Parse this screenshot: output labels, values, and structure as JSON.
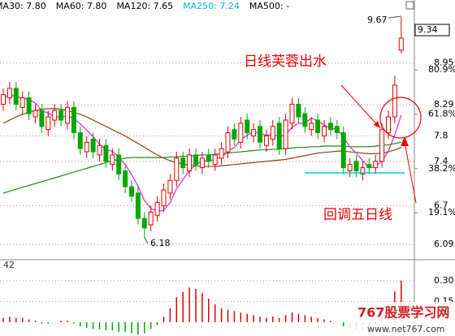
{
  "chart_data": [
    {
      "type": "candlestick",
      "header": [
        {
          "label": "MA30: 7.80",
          "color": "#000000"
        },
        {
          "label": "MA60: 7.80",
          "color": "#000000"
        },
        {
          "label": "MA120: 7.65",
          "color": "#000000"
        },
        {
          "label": "MA250: 7.24",
          "color": "#00b8e0"
        },
        {
          "label": "MA500: -",
          "color": "#000000"
        }
      ],
      "categories": [
        null,
        null,
        null,
        null,
        null,
        null,
        null,
        null,
        null,
        null,
        null,
        null,
        null,
        null,
        null,
        null,
        null,
        null,
        null,
        null,
        null,
        null,
        null,
        null,
        null,
        null,
        null,
        null,
        null,
        null,
        null,
        null,
        null,
        null,
        null,
        null,
        null,
        null,
        null,
        null,
        null,
        null,
        null,
        null,
        null,
        null,
        null,
        null,
        null,
        null,
        null,
        null,
        null,
        null,
        null,
        null,
        null,
        null,
        null,
        null,
        null,
        null,
        null
      ],
      "open": [
        8.3,
        8.4,
        8.55,
        8.25,
        8.4,
        8.1,
        8.2,
        7.9,
        8.05,
        8.2,
        8.0,
        8.25,
        7.85,
        7.55,
        7.75,
        7.5,
        7.65,
        7.35,
        7.5,
        7.25,
        7.0,
        6.9,
        6.5,
        6.4,
        6.55,
        6.7,
        6.9,
        7.1,
        7.45,
        7.25,
        7.5,
        7.3,
        7.5,
        7.35,
        7.45,
        7.55,
        7.9,
        7.7,
        8.05,
        7.8,
        7.95,
        7.65,
        7.75,
        8.0,
        7.6,
        8.0,
        8.3,
        8.15,
        7.9,
        8.05,
        7.8,
        8.0,
        7.95,
        7.85,
        7.25,
        7.4,
        7.2,
        7.35,
        7.3,
        7.4,
        7.85,
        8.1,
        9.15
      ],
      "high": [
        8.55,
        8.65,
        8.65,
        8.5,
        8.5,
        8.3,
        8.3,
        8.2,
        8.3,
        8.3,
        8.35,
        8.35,
        7.95,
        7.8,
        7.85,
        7.75,
        7.75,
        7.6,
        7.6,
        7.35,
        7.1,
        7.0,
        6.6,
        6.7,
        6.85,
        7.05,
        7.2,
        7.55,
        7.55,
        7.6,
        7.6,
        7.55,
        7.6,
        7.6,
        7.7,
        7.95,
        8.0,
        8.1,
        8.15,
        8.0,
        8.05,
        7.9,
        8.05,
        8.1,
        8.15,
        8.4,
        8.4,
        8.25,
        8.1,
        8.15,
        8.05,
        8.1,
        8.05,
        7.95,
        7.45,
        7.5,
        7.4,
        7.45,
        7.5,
        8.0,
        8.2,
        8.75,
        9.67
      ],
      "low": [
        8.2,
        8.3,
        8.2,
        8.15,
        8.05,
        8.0,
        7.85,
        7.8,
        7.95,
        7.95,
        7.9,
        7.75,
        7.5,
        7.45,
        7.45,
        7.4,
        7.3,
        7.25,
        7.1,
        6.9,
        6.75,
        6.4,
        6.18,
        6.3,
        6.45,
        6.6,
        6.8,
        7.0,
        7.2,
        7.15,
        7.25,
        7.2,
        7.3,
        7.25,
        7.35,
        7.45,
        7.65,
        7.6,
        7.75,
        7.7,
        7.6,
        7.55,
        7.65,
        7.5,
        7.5,
        7.9,
        8.0,
        7.85,
        7.8,
        7.75,
        7.7,
        7.8,
        7.75,
        7.2,
        7.15,
        7.15,
        7.1,
        7.2,
        7.2,
        7.3,
        7.75,
        8.0,
        9.1
      ],
      "close": [
        8.45,
        8.55,
        8.3,
        8.4,
        8.15,
        8.2,
        7.95,
        8.1,
        8.2,
        8.05,
        8.25,
        7.85,
        7.6,
        7.7,
        7.55,
        7.65,
        7.4,
        7.5,
        7.2,
        7.0,
        6.85,
        6.5,
        6.35,
        6.6,
        6.75,
        6.95,
        7.1,
        7.45,
        7.3,
        7.5,
        7.35,
        7.45,
        7.4,
        7.5,
        7.6,
        7.85,
        7.75,
        8.0,
        7.85,
        7.9,
        7.7,
        7.8,
        7.95,
        7.6,
        8.05,
        8.3,
        8.1,
        7.95,
        8.0,
        7.85,
        7.95,
        7.9,
        7.85,
        7.3,
        7.35,
        7.25,
        7.3,
        7.3,
        7.4,
        7.9,
        8.1,
        8.6,
        9.34
      ],
      "up_color": "#e00000",
      "down_color": "#00a800",
      "lines": [
        {
          "color": "#e020e0",
          "values": [
            8.4,
            8.45,
            8.42,
            8.4,
            8.37,
            8.32,
            8.2,
            8.16,
            8.1,
            8.1,
            8.11,
            8.08,
            7.99,
            7.89,
            7.79,
            7.67,
            7.58,
            7.56,
            7.46,
            7.35,
            7.19,
            7.01,
            6.78,
            6.66,
            6.61,
            6.63,
            6.75,
            6.97,
            7.11,
            7.26,
            7.34,
            7.41,
            7.4,
            7.44,
            7.46,
            7.56,
            7.62,
            7.74,
            7.81,
            7.87,
            7.84,
            7.81,
            7.82,
            7.79,
            7.82,
            7.94,
            8.0,
            8.0,
            8.08,
            8.04,
            7.97,
            7.92,
            7.91,
            7.78,
            7.63,
            7.53,
            7.41,
            7.3,
            7.31,
            7.41,
            7.56,
            7.82,
            8.13
          ]
        },
        {
          "color": "#1a8a1a",
          "values": [
            6.9,
            6.93,
            6.96,
            6.99,
            7.02,
            7.05,
            7.08,
            7.11,
            7.14,
            7.17,
            7.2,
            7.23,
            7.26,
            7.29,
            7.32,
            7.35,
            7.38,
            7.41,
            7.43,
            7.45,
            7.46,
            7.46,
            7.46,
            7.46,
            7.46,
            7.46,
            7.47,
            7.47,
            7.48,
            7.48,
            7.49,
            7.5,
            7.5,
            7.51,
            7.52,
            7.53,
            7.54,
            7.55,
            7.56,
            7.57,
            7.58,
            7.58,
            7.59,
            7.59,
            7.6,
            7.61,
            7.62,
            7.62,
            7.63,
            7.63,
            7.64,
            7.64,
            7.64,
            7.64,
            7.63,
            7.63,
            7.63,
            7.63,
            7.64,
            7.65,
            7.66,
            7.68,
            7.7
          ]
        },
        {
          "color": "#8b4513",
          "values": [
            8.0,
            8.05,
            8.1,
            8.14,
            8.18,
            8.2,
            8.22,
            8.23,
            8.23,
            8.22,
            8.2,
            8.17,
            8.14,
            8.1,
            8.05,
            8.0,
            7.95,
            7.9,
            7.85,
            7.8,
            7.74,
            7.68,
            7.62,
            7.56,
            7.5,
            7.45,
            7.41,
            7.38,
            7.36,
            7.34,
            7.33,
            7.32,
            7.32,
            7.32,
            7.33,
            7.34,
            7.35,
            7.36,
            7.37,
            7.38,
            7.39,
            7.4,
            7.41,
            7.42,
            7.43,
            7.45,
            7.47,
            7.49,
            7.51,
            7.53,
            7.54,
            7.55,
            7.56,
            7.56,
            7.55,
            7.54,
            7.53,
            7.52,
            7.52,
            7.53,
            7.55,
            7.58,
            7.62
          ]
        }
      ],
      "ylim": [
        5.85,
        9.75
      ],
      "yticks": [
        8.95,
        8.29,
        7.8,
        7.4,
        6.7,
        6.09
      ],
      "y2lim": [
        -1.2,
        105.9
      ],
      "y2ticks": [
        {
          "value": 80.9,
          "label": "80.9%"
        },
        {
          "value": 61.8,
          "label": "61.8%"
        },
        {
          "value": 38.2,
          "label": "38.2%"
        },
        {
          "value": 19.1,
          "label": "19.1%"
        }
      ],
      "grid": true,
      "last_price": "9.34",
      "annotations": {
        "high": "9.67",
        "low": "6.18",
        "note_1": "日线芙蓉出水",
        "note_2": "回调五日线"
      },
      "watermark": {
        "brand": "767股票学习网",
        "url": "www.net767.com"
      }
    },
    {
      "type": "bar",
      "label": "42",
      "values": [
        0.03,
        0.04,
        0.03,
        0.03,
        0.02,
        0.01,
        -0.01,
        -0.01,
        0,
        0.01,
        0.01,
        -0.01,
        -0.03,
        -0.04,
        -0.05,
        -0.05,
        -0.06,
        -0.06,
        -0.07,
        -0.07,
        -0.08,
        -0.09,
        -0.08,
        -0.05,
        -0.02,
        0.04,
        0.1,
        0.18,
        0.22,
        0.25,
        0.24,
        0.21,
        0.17,
        0.13,
        0.1,
        0.09,
        0.08,
        0.07,
        0.06,
        0.05,
        0.04,
        0.03,
        0.04,
        0.03,
        0.05,
        0.07,
        0.06,
        0.05,
        0.04,
        0.03,
        0.02,
        0.01,
        0,
        -0.03,
        -0.05,
        -0.06,
        -0.05,
        -0.04,
        -0.02,
        0.04,
        0.12,
        0.22,
        0.3
      ],
      "up_color": "#e00000",
      "down_color": "#00a800",
      "ylim": [
        -0.1,
        0.44
      ],
      "yticks": [
        {
          "value": 0.3,
          "label": "0.30"
        },
        0.15
      ]
    }
  ]
}
